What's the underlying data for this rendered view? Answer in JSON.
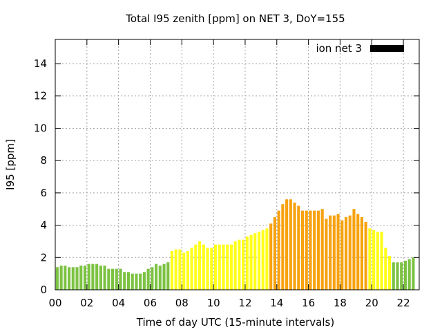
{
  "chart_data": {
    "type": "bar",
    "title": "Total I95 zenith [ppm] on NET 3, DoY=155",
    "xlabel": "Time of day UTC (15-minute intervals)",
    "ylabel": "I95 [ppm]",
    "ylim": [
      0,
      15.5
    ],
    "xlim": [
      0,
      23
    ],
    "y_ticks": [
      0,
      2,
      4,
      6,
      8,
      10,
      12,
      14
    ],
    "y_tick_labels": [
      "0",
      "2",
      "4",
      "6",
      "8",
      "10",
      "12",
      "14"
    ],
    "x_ticks": [
      0,
      2,
      4,
      6,
      8,
      10,
      12,
      14,
      16,
      18,
      20,
      22
    ],
    "x_tick_labels": [
      "00",
      "02",
      "04",
      "06",
      "08",
      "10",
      "12",
      "14",
      "16",
      "18",
      "20",
      "22"
    ],
    "grid": true,
    "legend": {
      "label": "ion net 3",
      "placement": "top-right",
      "color": "#000000"
    },
    "colors": {
      "low": "#7cc242",
      "moderate": "#ffff1a",
      "elevated": "#f7a20f"
    },
    "bar_interval_hours": 0.25,
    "values": [
      1.4,
      1.5,
      1.5,
      1.4,
      1.4,
      1.4,
      1.5,
      1.5,
      1.6,
      1.6,
      1.6,
      1.5,
      1.5,
      1.3,
      1.3,
      1.3,
      1.3,
      1.1,
      1.1,
      1.0,
      1.0,
      1.0,
      1.1,
      1.3,
      1.4,
      1.6,
      1.5,
      1.6,
      1.7,
      2.4,
      2.5,
      2.5,
      2.3,
      2.4,
      2.6,
      2.8,
      3.0,
      2.8,
      2.6,
      2.6,
      2.8,
      2.8,
      2.8,
      2.8,
      2.8,
      3.0,
      3.1,
      3.1,
      3.3,
      3.4,
      3.5,
      3.6,
      3.7,
      3.8,
      4.1,
      4.5,
      4.9,
      5.3,
      5.6,
      5.6,
      5.4,
      5.2,
      4.9,
      4.9,
      4.9,
      4.9,
      4.9,
      5.0,
      4.4,
      4.6,
      4.6,
      4.7,
      4.3,
      4.5,
      4.6,
      5.0,
      4.7,
      4.5,
      4.2,
      3.8,
      3.7,
      3.6,
      3.6,
      2.6,
      2.1,
      1.7,
      1.7,
      1.7,
      1.8,
      1.9,
      2.0
    ],
    "value_levels": [
      "low",
      "low",
      "low",
      "low",
      "low",
      "low",
      "low",
      "low",
      "low",
      "low",
      "low",
      "low",
      "low",
      "low",
      "low",
      "low",
      "low",
      "low",
      "low",
      "low",
      "low",
      "low",
      "low",
      "low",
      "low",
      "low",
      "low",
      "low",
      "low",
      "moderate",
      "moderate",
      "moderate",
      "moderate",
      "moderate",
      "moderate",
      "moderate",
      "moderate",
      "moderate",
      "moderate",
      "moderate",
      "moderate",
      "moderate",
      "moderate",
      "moderate",
      "moderate",
      "moderate",
      "moderate",
      "moderate",
      "moderate",
      "moderate",
      "moderate",
      "moderate",
      "moderate",
      "moderate",
      "elevated",
      "elevated",
      "elevated",
      "elevated",
      "elevated",
      "elevated",
      "elevated",
      "elevated",
      "elevated",
      "elevated",
      "elevated",
      "elevated",
      "elevated",
      "elevated",
      "elevated",
      "elevated",
      "elevated",
      "elevated",
      "elevated",
      "elevated",
      "elevated",
      "elevated",
      "elevated",
      "elevated",
      "elevated",
      "moderate",
      "moderate",
      "moderate",
      "moderate",
      "moderate",
      "moderate",
      "low",
      "low",
      "low",
      "low",
      "low",
      "low"
    ]
  }
}
